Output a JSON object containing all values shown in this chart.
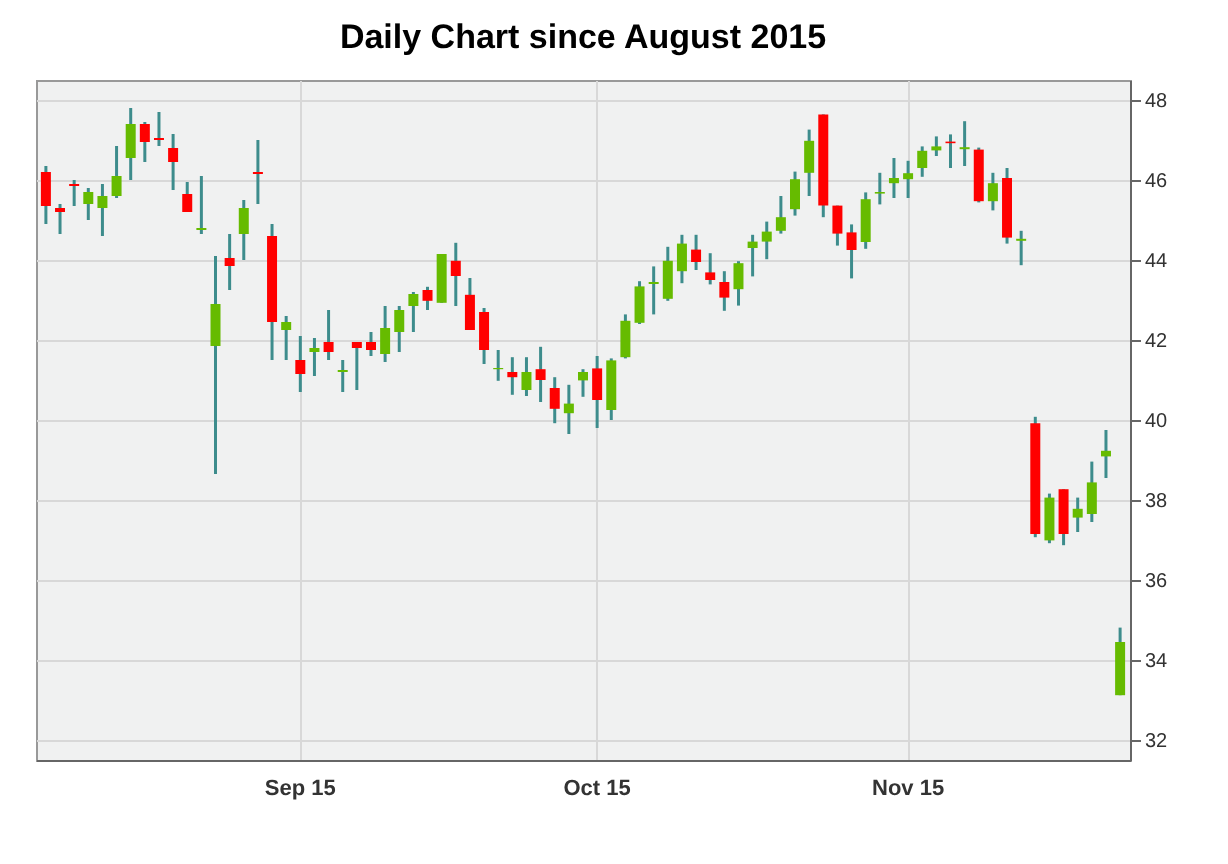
{
  "chart_data": {
    "type": "candlestick",
    "title": "Daily Chart since August 2015",
    "categories": [
      null,
      null,
      null,
      null,
      null,
      null,
      null,
      null,
      null,
      null,
      null,
      null,
      null,
      null,
      null,
      null,
      null,
      null,
      "Sep 15",
      null,
      null,
      null,
      null,
      null,
      null,
      null,
      null,
      null,
      null,
      null,
      null,
      null,
      null,
      null,
      null,
      null,
      null,
      null,
      null,
      "Oct 15",
      null,
      null,
      null,
      null,
      null,
      null,
      null,
      null,
      null,
      null,
      null,
      null,
      null,
      null,
      null,
      null,
      null,
      null,
      null,
      null,
      null,
      "Nov 15",
      null,
      null,
      null,
      null,
      null,
      null,
      null,
      null,
      null,
      null,
      null,
      null,
      null,
      null,
      null
    ],
    "ohlc": [
      [
        46.2,
        46.35,
        44.9,
        45.35
      ],
      [
        45.3,
        45.4,
        44.65,
        45.2
      ],
      [
        45.9,
        46.0,
        45.35,
        45.85
      ],
      [
        45.4,
        45.8,
        45.0,
        45.7
      ],
      [
        45.3,
        45.9,
        44.6,
        45.6
      ],
      [
        45.6,
        46.85,
        45.55,
        46.1
      ],
      [
        46.55,
        47.8,
        46.0,
        47.4
      ],
      [
        47.4,
        47.45,
        46.45,
        46.95
      ],
      [
        47.05,
        47.7,
        46.85,
        47.0
      ],
      [
        46.8,
        47.15,
        45.75,
        46.45
      ],
      [
        45.65,
        45.95,
        45.2,
        45.2
      ],
      [
        44.75,
        46.1,
        44.65,
        44.8
      ],
      [
        41.85,
        44.1,
        38.65,
        42.9
      ],
      [
        44.05,
        44.65,
        43.25,
        43.85
      ],
      [
        44.65,
        45.5,
        44.0,
        45.3
      ],
      [
        46.2,
        47.0,
        45.4,
        46.15
      ],
      [
        44.6,
        44.9,
        41.5,
        42.45
      ],
      [
        42.25,
        42.6,
        41.5,
        42.45
      ],
      [
        41.5,
        42.1,
        40.7,
        41.15
      ],
      [
        41.7,
        42.05,
        41.1,
        41.8
      ],
      [
        41.95,
        42.75,
        41.5,
        41.7
      ],
      [
        41.2,
        41.5,
        40.7,
        41.25
      ],
      [
        41.95,
        41.95,
        40.75,
        41.8
      ],
      [
        41.95,
        42.2,
        41.6,
        41.75
      ],
      [
        41.65,
        42.85,
        41.45,
        42.3
      ],
      [
        42.2,
        42.85,
        41.7,
        42.75
      ],
      [
        42.85,
        43.2,
        42.2,
        43.15
      ],
      [
        43.25,
        43.33,
        42.75,
        42.98
      ],
      [
        42.93,
        44.15,
        42.93,
        44.15
      ],
      [
        43.98,
        44.43,
        42.85,
        43.6
      ],
      [
        43.13,
        43.55,
        42.25,
        42.25
      ],
      [
        42.7,
        42.8,
        41.4,
        41.75
      ],
      [
        41.27,
        41.75,
        40.98,
        41.3
      ],
      [
        41.2,
        41.57,
        40.63,
        41.07
      ],
      [
        40.75,
        41.57,
        40.6,
        41.2
      ],
      [
        41.27,
        41.83,
        40.45,
        41.0
      ],
      [
        40.8,
        41.07,
        39.92,
        40.28
      ],
      [
        40.17,
        40.88,
        39.65,
        40.41
      ],
      [
        40.99,
        41.27,
        40.58,
        41.2
      ],
      [
        41.29,
        41.6,
        39.8,
        40.5
      ],
      [
        40.25,
        41.54,
        40.0,
        41.49
      ],
      [
        41.57,
        42.64,
        41.54,
        42.48
      ],
      [
        42.43,
        43.47,
        42.4,
        43.34
      ],
      [
        43.4,
        43.84,
        42.64,
        43.45
      ],
      [
        43.03,
        44.33,
        42.98,
        43.98
      ],
      [
        43.72,
        44.63,
        43.42,
        44.41
      ],
      [
        44.26,
        44.63,
        43.75,
        43.95
      ],
      [
        43.69,
        44.17,
        43.39,
        43.5
      ],
      [
        43.45,
        43.72,
        42.73,
        43.06
      ],
      [
        43.27,
        43.97,
        42.86,
        43.92
      ],
      [
        44.3,
        44.63,
        43.59,
        44.46
      ],
      [
        44.46,
        44.96,
        44.02,
        44.71
      ],
      [
        44.73,
        45.6,
        44.66,
        45.07
      ],
      [
        45.27,
        46.21,
        45.11,
        46.02
      ],
      [
        46.18,
        47.26,
        45.6,
        46.98
      ],
      [
        47.64,
        47.64,
        45.07,
        45.36
      ],
      [
        45.36,
        45.36,
        44.36,
        44.66
      ],
      [
        44.69,
        44.89,
        43.54,
        44.25
      ],
      [
        44.45,
        45.69,
        44.28,
        45.52
      ],
      [
        45.66,
        46.18,
        45.39,
        45.7
      ],
      [
        45.92,
        46.55,
        45.55,
        46.05
      ],
      [
        46.02,
        46.48,
        45.55,
        46.17
      ],
      [
        46.3,
        46.84,
        46.08,
        46.73
      ],
      [
        46.74,
        47.09,
        46.6,
        46.84
      ],
      [
        46.96,
        47.14,
        46.3,
        46.92
      ],
      [
        46.77,
        47.47,
        46.35,
        46.82
      ],
      [
        46.76,
        46.81,
        45.44,
        45.47
      ],
      [
        45.47,
        46.18,
        45.24,
        45.92
      ],
      [
        46.05,
        46.3,
        44.41,
        44.56
      ],
      [
        44.48,
        44.73,
        43.87,
        44.53
      ],
      [
        39.92,
        40.08,
        37.07,
        37.15
      ],
      [
        36.99,
        38.16,
        36.92,
        38.06
      ],
      [
        38.27,
        38.27,
        36.87,
        37.15
      ],
      [
        37.56,
        38.06,
        37.2,
        37.78
      ],
      [
        37.65,
        38.96,
        37.45,
        38.44
      ],
      [
        39.09,
        39.75,
        38.55,
        39.23
      ],
      [
        33.12,
        34.81,
        33.12,
        34.45
      ]
    ],
    "colors": [
      "#ff0000",
      "#ff0000",
      "#ff0000",
      "#66bb00",
      "#66bb00",
      "#66bb00",
      "#66bb00",
      "#ff0000",
      "#ff0000",
      "#ff0000",
      "#ff0000",
      "#66bb00",
      "#66bb00",
      "#ff0000",
      "#66bb00",
      "#ff0000",
      "#ff0000",
      "#66bb00",
      "#ff0000",
      "#66bb00",
      "#ff0000",
      "#66bb00",
      "#ff0000",
      "#ff0000",
      "#66bb00",
      "#66bb00",
      "#66bb00",
      "#ff0000",
      "#66bb00",
      "#ff0000",
      "#ff0000",
      "#ff0000",
      "#66bb00",
      "#ff0000",
      "#66bb00",
      "#ff0000",
      "#ff0000",
      "#66bb00",
      "#66bb00",
      "#ff0000",
      "#66bb00",
      "#66bb00",
      "#66bb00",
      "#66bb00",
      "#66bb00",
      "#66bb00",
      "#ff0000",
      "#ff0000",
      "#ff0000",
      "#66bb00",
      "#66bb00",
      "#66bb00",
      "#66bb00",
      "#66bb00",
      "#66bb00",
      "#ff0000",
      "#ff0000",
      "#ff0000",
      "#66bb00",
      "#66bb00",
      "#66bb00",
      "#66bb00",
      "#66bb00",
      "#66bb00",
      "#ff0000",
      "#66bb00",
      "#ff0000",
      "#66bb00",
      "#ff0000",
      "#66bb00",
      "#ff0000",
      "#66bb00",
      "#ff0000",
      "#66bb00",
      "#66bb00",
      "#66bb00",
      "#66bb00"
    ],
    "ylim": [
      31.5,
      48.5
    ],
    "yticks": [
      32,
      34,
      36,
      38,
      40,
      42,
      44,
      46,
      48
    ],
    "grid": true
  }
}
